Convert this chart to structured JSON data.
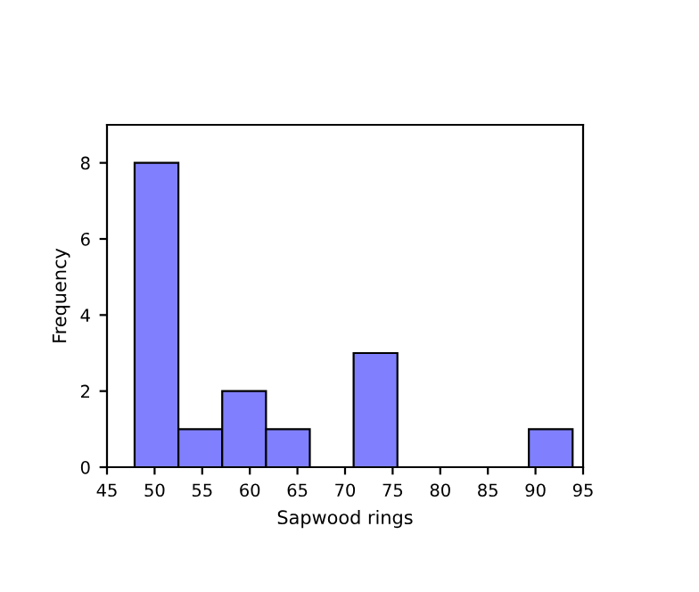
{
  "chart_data": {
    "type": "histogram",
    "xlabel": "Sapwood rings",
    "ylabel": "Frequency",
    "bins": [
      47.9,
      52.5,
      57.1,
      61.7,
      66.3,
      70.9,
      75.5,
      80.1,
      84.7,
      89.3,
      93.9
    ],
    "values": [
      8,
      1,
      2,
      1,
      0,
      3,
      0,
      0,
      0,
      1
    ],
    "color": "#8080ff",
    "xlim": [
      45,
      95
    ],
    "xticks": [
      45,
      50,
      55,
      60,
      65,
      70,
      75,
      80,
      85,
      90,
      95
    ],
    "ylim": [
      0,
      9
    ],
    "yticks": [
      0,
      2,
      4,
      6,
      8
    ],
    "grid": false
  }
}
